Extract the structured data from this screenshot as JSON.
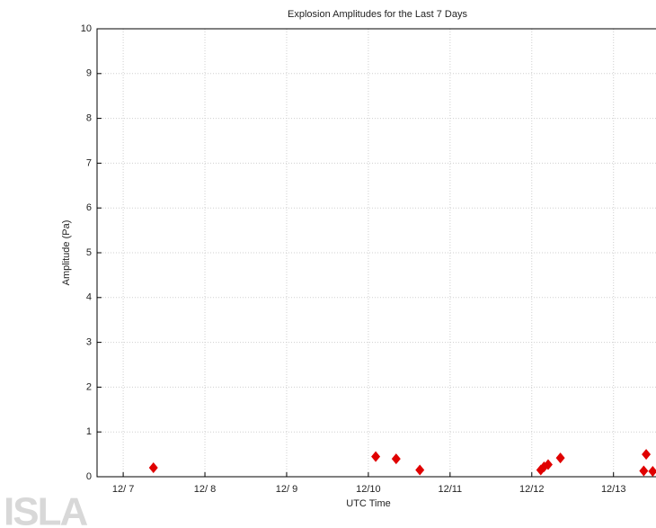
{
  "chart_data": {
    "type": "scatter",
    "title": "Explosion Amplitudes for the Last 7 Days",
    "x_label": "UTC Time",
    "y_label": "Amplitude (Pa)",
    "xlim": [
      6.68,
      13.52
    ],
    "xticks": [
      {
        "value": 7,
        "label": "12/ 7"
      },
      {
        "value": 8,
        "label": "12/ 8"
      },
      {
        "value": 9,
        "label": "12/ 9"
      },
      {
        "value": 10,
        "label": "12/10"
      },
      {
        "value": 11,
        "label": "12/11"
      },
      {
        "value": 12,
        "label": "12/12"
      },
      {
        "value": 13,
        "label": "12/13"
      }
    ],
    "ylim": [
      0,
      10
    ],
    "yticks": [
      0,
      1,
      2,
      3,
      4,
      5,
      6,
      7,
      8,
      9,
      10
    ],
    "grid": true,
    "series": [
      {
        "color": "#e00000",
        "x": [
          7.37,
          10.09,
          10.34,
          10.63,
          12.11,
          12.15,
          12.2,
          12.35,
          13.4,
          13.37,
          13.48
        ],
        "values": [
          0.2,
          0.45,
          0.4,
          0.15,
          0.15,
          0.22,
          0.27,
          0.42,
          0.5,
          0.13,
          0.12
        ]
      }
    ]
  },
  "logo": "ISLA"
}
